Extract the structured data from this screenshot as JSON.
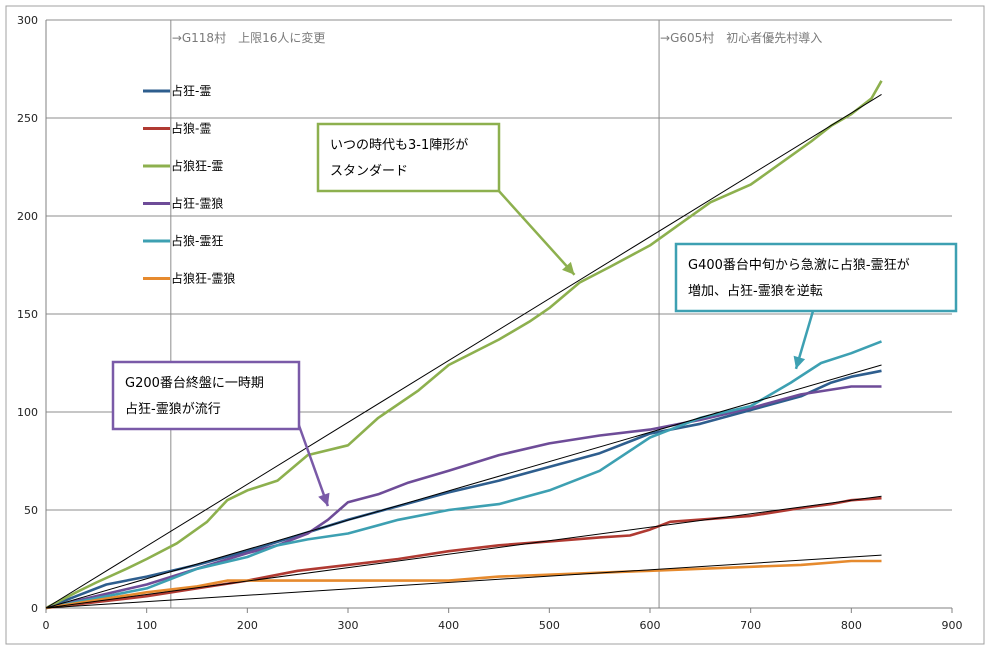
{
  "chart_data": {
    "type": "line",
    "xlim": [
      0,
      900
    ],
    "ylim": [
      0,
      300
    ],
    "xticks": [
      0,
      100,
      200,
      300,
      400,
      500,
      600,
      700,
      800,
      900
    ],
    "yticks": [
      0,
      50,
      100,
      150,
      200,
      250,
      300
    ],
    "grid": "horizontal",
    "legend_position": "left",
    "series": [
      {
        "name": "占狂-霊",
        "color": "#2e5e8e",
        "points": [
          [
            0,
            0
          ],
          [
            30,
            6
          ],
          [
            60,
            12
          ],
          [
            100,
            16
          ],
          [
            150,
            22
          ],
          [
            200,
            29
          ],
          [
            250,
            37
          ],
          [
            300,
            45
          ],
          [
            350,
            52
          ],
          [
            400,
            59
          ],
          [
            450,
            65
          ],
          [
            500,
            72
          ],
          [
            550,
            79
          ],
          [
            600,
            89
          ],
          [
            650,
            94
          ],
          [
            700,
            101
          ],
          [
            750,
            108
          ],
          [
            780,
            115
          ],
          [
            800,
            118
          ],
          [
            820,
            120
          ],
          [
            830,
            121
          ]
        ]
      },
      {
        "name": "占狼-霊",
        "color": "#b03a32",
        "points": [
          [
            0,
            0
          ],
          [
            50,
            3
          ],
          [
            100,
            6
          ],
          [
            150,
            10
          ],
          [
            200,
            14
          ],
          [
            250,
            19
          ],
          [
            300,
            22
          ],
          [
            350,
            25
          ],
          [
            400,
            29
          ],
          [
            450,
            32
          ],
          [
            500,
            34
          ],
          [
            550,
            36
          ],
          [
            580,
            37
          ],
          [
            600,
            40
          ],
          [
            620,
            44
          ],
          [
            700,
            47
          ],
          [
            750,
            51
          ],
          [
            780,
            53
          ],
          [
            800,
            55
          ],
          [
            830,
            56
          ]
        ]
      },
      {
        "name": "占狼狂-霊",
        "color": "#8db04e",
        "points": [
          [
            0,
            0
          ],
          [
            30,
            8
          ],
          [
            50,
            13
          ],
          [
            80,
            20
          ],
          [
            100,
            25
          ],
          [
            130,
            33
          ],
          [
            160,
            44
          ],
          [
            180,
            55
          ],
          [
            200,
            60
          ],
          [
            230,
            65
          ],
          [
            260,
            78
          ],
          [
            300,
            83
          ],
          [
            330,
            97
          ],
          [
            370,
            111
          ],
          [
            400,
            124
          ],
          [
            450,
            137
          ],
          [
            480,
            146
          ],
          [
            500,
            153
          ],
          [
            530,
            166
          ],
          [
            560,
            174
          ],
          [
            600,
            185
          ],
          [
            630,
            196
          ],
          [
            660,
            207
          ],
          [
            700,
            216
          ],
          [
            730,
            227
          ],
          [
            760,
            238
          ],
          [
            780,
            246
          ],
          [
            800,
            252
          ],
          [
            820,
            260
          ],
          [
            830,
            269
          ]
        ]
      },
      {
        "name": "占狂-霊狼",
        "color": "#6e4c98",
        "points": [
          [
            0,
            0
          ],
          [
            50,
            6
          ],
          [
            100,
            12
          ],
          [
            150,
            20
          ],
          [
            200,
            28
          ],
          [
            230,
            32
          ],
          [
            260,
            38
          ],
          [
            280,
            45
          ],
          [
            300,
            54
          ],
          [
            330,
            58
          ],
          [
            360,
            64
          ],
          [
            400,
            70
          ],
          [
            450,
            78
          ],
          [
            500,
            84
          ],
          [
            550,
            88
          ],
          [
            600,
            91
          ],
          [
            650,
            96
          ],
          [
            700,
            102
          ],
          [
            750,
            109
          ],
          [
            800,
            113
          ],
          [
            830,
            113
          ]
        ]
      },
      {
        "name": "占狼-霊狂",
        "color": "#3da0b2",
        "points": [
          [
            0,
            0
          ],
          [
            50,
            5
          ],
          [
            100,
            10
          ],
          [
            150,
            20
          ],
          [
            200,
            26
          ],
          [
            230,
            32
          ],
          [
            260,
            35
          ],
          [
            300,
            38
          ],
          [
            350,
            45
          ],
          [
            400,
            50
          ],
          [
            450,
            53
          ],
          [
            500,
            60
          ],
          [
            550,
            70
          ],
          [
            600,
            87
          ],
          [
            650,
            97
          ],
          [
            700,
            103
          ],
          [
            740,
            115
          ],
          [
            770,
            125
          ],
          [
            800,
            130
          ],
          [
            830,
            136
          ]
        ]
      },
      {
        "name": "占狼狂-霊狼",
        "color": "#e68a2e",
        "points": [
          [
            0,
            0
          ],
          [
            50,
            4
          ],
          [
            100,
            8
          ],
          [
            150,
            11
          ],
          [
            180,
            14
          ],
          [
            250,
            14
          ],
          [
            300,
            14
          ],
          [
            350,
            14
          ],
          [
            400,
            14
          ],
          [
            450,
            16
          ],
          [
            500,
            17
          ],
          [
            550,
            18
          ],
          [
            600,
            19
          ],
          [
            650,
            20
          ],
          [
            700,
            21
          ],
          [
            750,
            22
          ],
          [
            800,
            24
          ],
          [
            830,
            24
          ]
        ]
      }
    ],
    "trend_lines": [
      {
        "from": [
          0,
          0
        ],
        "to": [
          830,
          262
        ],
        "color": "#000000"
      },
      {
        "from": [
          0,
          0
        ],
        "to": [
          830,
          124
        ],
        "color": "#000000"
      },
      {
        "from": [
          0,
          0
        ],
        "to": [
          830,
          57
        ],
        "color": "#000000"
      },
      {
        "from": [
          0,
          0
        ],
        "to": [
          830,
          27
        ],
        "color": "#000000"
      }
    ],
    "events": [
      {
        "x": 124,
        "label": "→G118村　上限16人に変更"
      },
      {
        "x": 609,
        "label": "→G605村　初心者優先村導入"
      }
    ],
    "annotations": [
      {
        "lines": [
          "いつの時代も3-1陣形が",
          "スタンダード"
        ],
        "color": "#8db04e",
        "arrow_to": [
          525,
          170
        ]
      },
      {
        "lines": [
          "G400番台中旬から急激に占狼-霊狂が",
          "増加、占狂-霊狼を逆転"
        ],
        "color": "#3da0b2",
        "arrow_to": [
          745,
          122
        ]
      },
      {
        "lines": [
          "G200番台終盤に一時期",
          "占狂-霊狼が流行"
        ],
        "color": "#7a5aa8",
        "arrow_to": [
          280,
          52
        ]
      }
    ]
  }
}
